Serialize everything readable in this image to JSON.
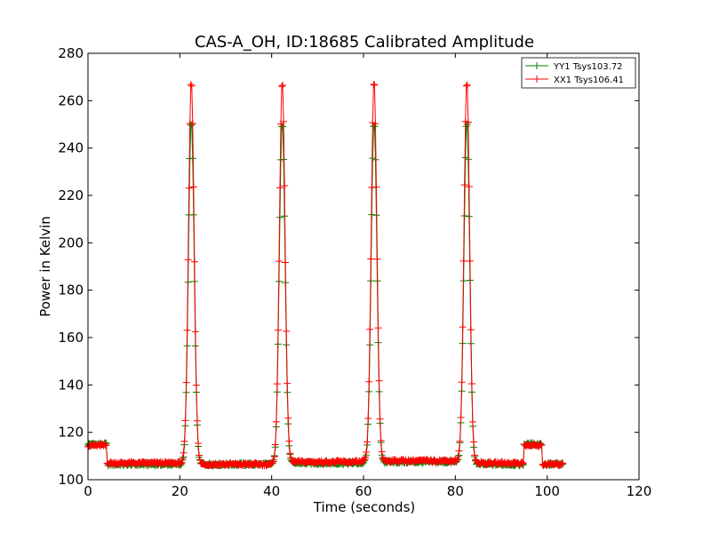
{
  "chart_data": {
    "type": "line",
    "title": "CAS-A_OH, ID:18685 Calibrated Amplitude",
    "xlabel": "Time (seconds)",
    "ylabel": "Power in Kelvin",
    "xlim": [
      0,
      120
    ],
    "ylim": [
      100,
      280
    ],
    "xticks": [
      0,
      20,
      40,
      60,
      80,
      100,
      120
    ],
    "yticks": [
      100,
      120,
      140,
      160,
      180,
      200,
      220,
      240,
      260,
      280
    ],
    "grid": false,
    "legend_position": "top-right",
    "series": [
      {
        "name": "YY1 Tsys103.72",
        "color": "#008000",
        "peak": 251.5,
        "baseline_levels": [
          {
            "from": 0,
            "to": 4.2,
            "value": 115
          },
          {
            "from": 4.2,
            "to": 21.5,
            "value": 106.5
          },
          {
            "from": 25,
            "to": 41.5,
            "value": 106.5
          },
          {
            "from": 45,
            "to": 61.5,
            "value": 107
          },
          {
            "from": 65,
            "to": 81.5,
            "value": 107.5
          },
          {
            "from": 85,
            "to": 95,
            "value": 106.5
          },
          {
            "from": 95,
            "to": 99,
            "value": 115
          },
          {
            "from": 99,
            "to": 103.5,
            "value": 106.5
          }
        ],
        "peak_centers": [
          22.5,
          42.3,
          62.3,
          82.5
        ]
      },
      {
        "name": "XX1 Tsys106.41",
        "color": "#ff0000",
        "peak": 268.5,
        "baseline_levels": [
          {
            "from": 0,
            "to": 4.2,
            "value": 114.5
          },
          {
            "from": 4.2,
            "to": 21.5,
            "value": 107
          },
          {
            "from": 25,
            "to": 41.5,
            "value": 106.5
          },
          {
            "from": 45,
            "to": 61.5,
            "value": 107.5
          },
          {
            "from": 65,
            "to": 81.5,
            "value": 108
          },
          {
            "from": 85,
            "to": 95,
            "value": 107
          },
          {
            "from": 95,
            "to": 99,
            "value": 114.5
          },
          {
            "from": 99,
            "to": 103.5,
            "value": 106.5
          }
        ],
        "peak_centers": [
          22.5,
          42.3,
          62.3,
          82.5
        ]
      }
    ]
  }
}
